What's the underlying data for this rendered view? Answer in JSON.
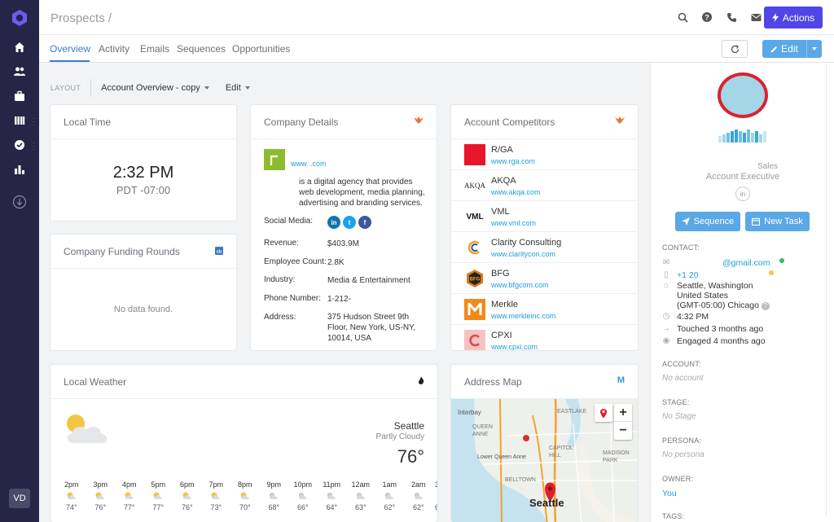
{
  "rail": {
    "user_initials": "VD",
    "icons": [
      "home-icon",
      "people-icon",
      "briefcase-icon",
      "library-icon",
      "check-circle-icon",
      "bar-chart-icon",
      "download-icon"
    ]
  },
  "header": {
    "breadcrumb": "Prospects /",
    "actions_label": "Actions"
  },
  "tabs": [
    {
      "label": "Overview",
      "active": true
    },
    {
      "label": "Activity"
    },
    {
      "label": "Emails"
    },
    {
      "label": "Sequences"
    },
    {
      "label": "Opportunities"
    }
  ],
  "edit_label": "Edit",
  "layout": {
    "label": "LAYOUT",
    "current": "Account Overview - copy",
    "edit": "Edit"
  },
  "local_time": {
    "title": "Local Time",
    "time": "2:32 PM",
    "zone": "PDT -07:00"
  },
  "funding": {
    "title": "Company Funding Rounds",
    "empty": "No data found."
  },
  "company": {
    "title": "Company Details",
    "link": "www.            .com",
    "description": "is a digital agency that provides web development, media planning, advertising and branding services.",
    "fields": [
      {
        "label": "Social Media:",
        "value": ""
      },
      {
        "label": "Revenue:",
        "value": "$403.9M"
      },
      {
        "label": "Employee Count:",
        "value": "2.8K"
      },
      {
        "label": "Industry:",
        "value": "Media & Entertainment"
      },
      {
        "label": "Phone Number:",
        "value": "1-212-"
      },
      {
        "label": "Address:",
        "value": "375 Hudson Street 9th Floor, New York, US-NY, 10014, USA"
      }
    ]
  },
  "competitors": {
    "title": "Account Competitors",
    "items": [
      {
        "name": "R/GA",
        "url": "www.rga.com"
      },
      {
        "name": "AKQA",
        "url": "www.akqa.com"
      },
      {
        "name": "VML",
        "url": "www.vml.com"
      },
      {
        "name": "Clarity Consulting",
        "url": "www.claritycon.com"
      },
      {
        "name": "BFG",
        "url": "www.bfgcom.com"
      },
      {
        "name": "Merkle",
        "url": "www.merkleinc.com"
      },
      {
        "name": "CPXI",
        "url": "www.cpxi.com"
      }
    ]
  },
  "weather": {
    "title": "Local Weather",
    "city": "Seattle",
    "condition": "Partly Cloudy",
    "temp": "76°",
    "hours": [
      {
        "h": "2pm",
        "t": "74°"
      },
      {
        "h": "3pm",
        "t": "76°"
      },
      {
        "h": "4pm",
        "t": "77°"
      },
      {
        "h": "5pm",
        "t": "77°"
      },
      {
        "h": "6pm",
        "t": "76°"
      },
      {
        "h": "7pm",
        "t": "73°"
      },
      {
        "h": "8pm",
        "t": "70°"
      },
      {
        "h": "9pm",
        "t": "68°"
      },
      {
        "h": "10pm",
        "t": "66°"
      },
      {
        "h": "11pm",
        "t": "64°"
      },
      {
        "h": "12am",
        "t": "63°"
      },
      {
        "h": "1am",
        "t": "62°"
      },
      {
        "h": "2am",
        "t": "62°"
      },
      {
        "h": "3",
        "t": "6"
      }
    ]
  },
  "map": {
    "title": "Address Map",
    "labels": [
      "Interbay",
      "EASTLAKE",
      "QUEEN ANNE",
      "Lower Queen Anne",
      "CAPITOL HILL",
      "BELLTOWN",
      "Seattle",
      "MADISON PARK"
    ],
    "zoom_in": "+",
    "zoom_out": "−"
  },
  "profile": {
    "role_line1": "Sales",
    "role_line2": "Account Executive",
    "sequence_label": "Sequence",
    "task_label": "New Task",
    "contact_label": "CONTACT:",
    "email": "@gmail.com",
    "phone": "+1 20",
    "location_line1": "Seattle, Washington",
    "location_line2": "United States",
    "location_line3": "(GMT-05:00) Chicago",
    "local_time": "4:32 PM",
    "touched": "Touched 3 months ago",
    "engaged": "Engaged 4 months ago",
    "account_label": "ACCOUNT:",
    "account_value": "No account",
    "stage_label": "STAGE:",
    "stage_value": "No Stage",
    "persona_label": "PERSONA:",
    "persona_value": "No persona",
    "owner_label": "OWNER:",
    "owner_value": "You",
    "tags_label": "TAGS:"
  }
}
